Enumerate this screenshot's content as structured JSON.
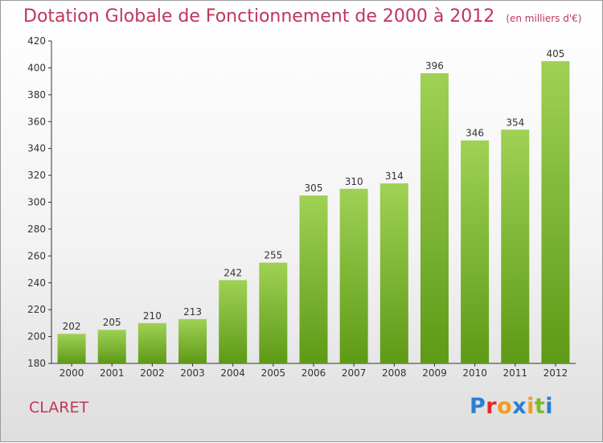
{
  "title": "Dotation Globale de Fonctionnement de 2000 à 2012",
  "unit": "(en milliers d'€)",
  "commune": "CLARET",
  "logo": {
    "letters": [
      {
        "char": "P",
        "color": "#2a7fd2"
      },
      {
        "char": "r",
        "color": "#e7262b"
      },
      {
        "char": "o",
        "color": "#f39b1d"
      },
      {
        "char": "x",
        "color": "#2a7fd2"
      },
      {
        "char": "i",
        "color": "#f39b1d"
      },
      {
        "char": "t",
        "color": "#7cbb2d"
      },
      {
        "char": "i",
        "color": "#2a7fd2"
      }
    ]
  },
  "colors": {
    "title": "#c0365a",
    "bar_top": "#9fd155",
    "bar_bottom": "#5e9a16",
    "axis": "#333333"
  },
  "chart_data": {
    "type": "bar",
    "categories": [
      "2000",
      "2001",
      "2002",
      "2003",
      "2004",
      "2005",
      "2006",
      "2007",
      "2008",
      "2009",
      "2010",
      "2011",
      "2012"
    ],
    "values": [
      202,
      205,
      210,
      213,
      242,
      255,
      305,
      310,
      314,
      396,
      346,
      354,
      405
    ],
    "ylim": [
      180,
      420
    ],
    "yticks": [
      180,
      200,
      220,
      240,
      260,
      280,
      300,
      320,
      340,
      360,
      380,
      400,
      420
    ],
    "data_labels": true,
    "grid": false
  }
}
